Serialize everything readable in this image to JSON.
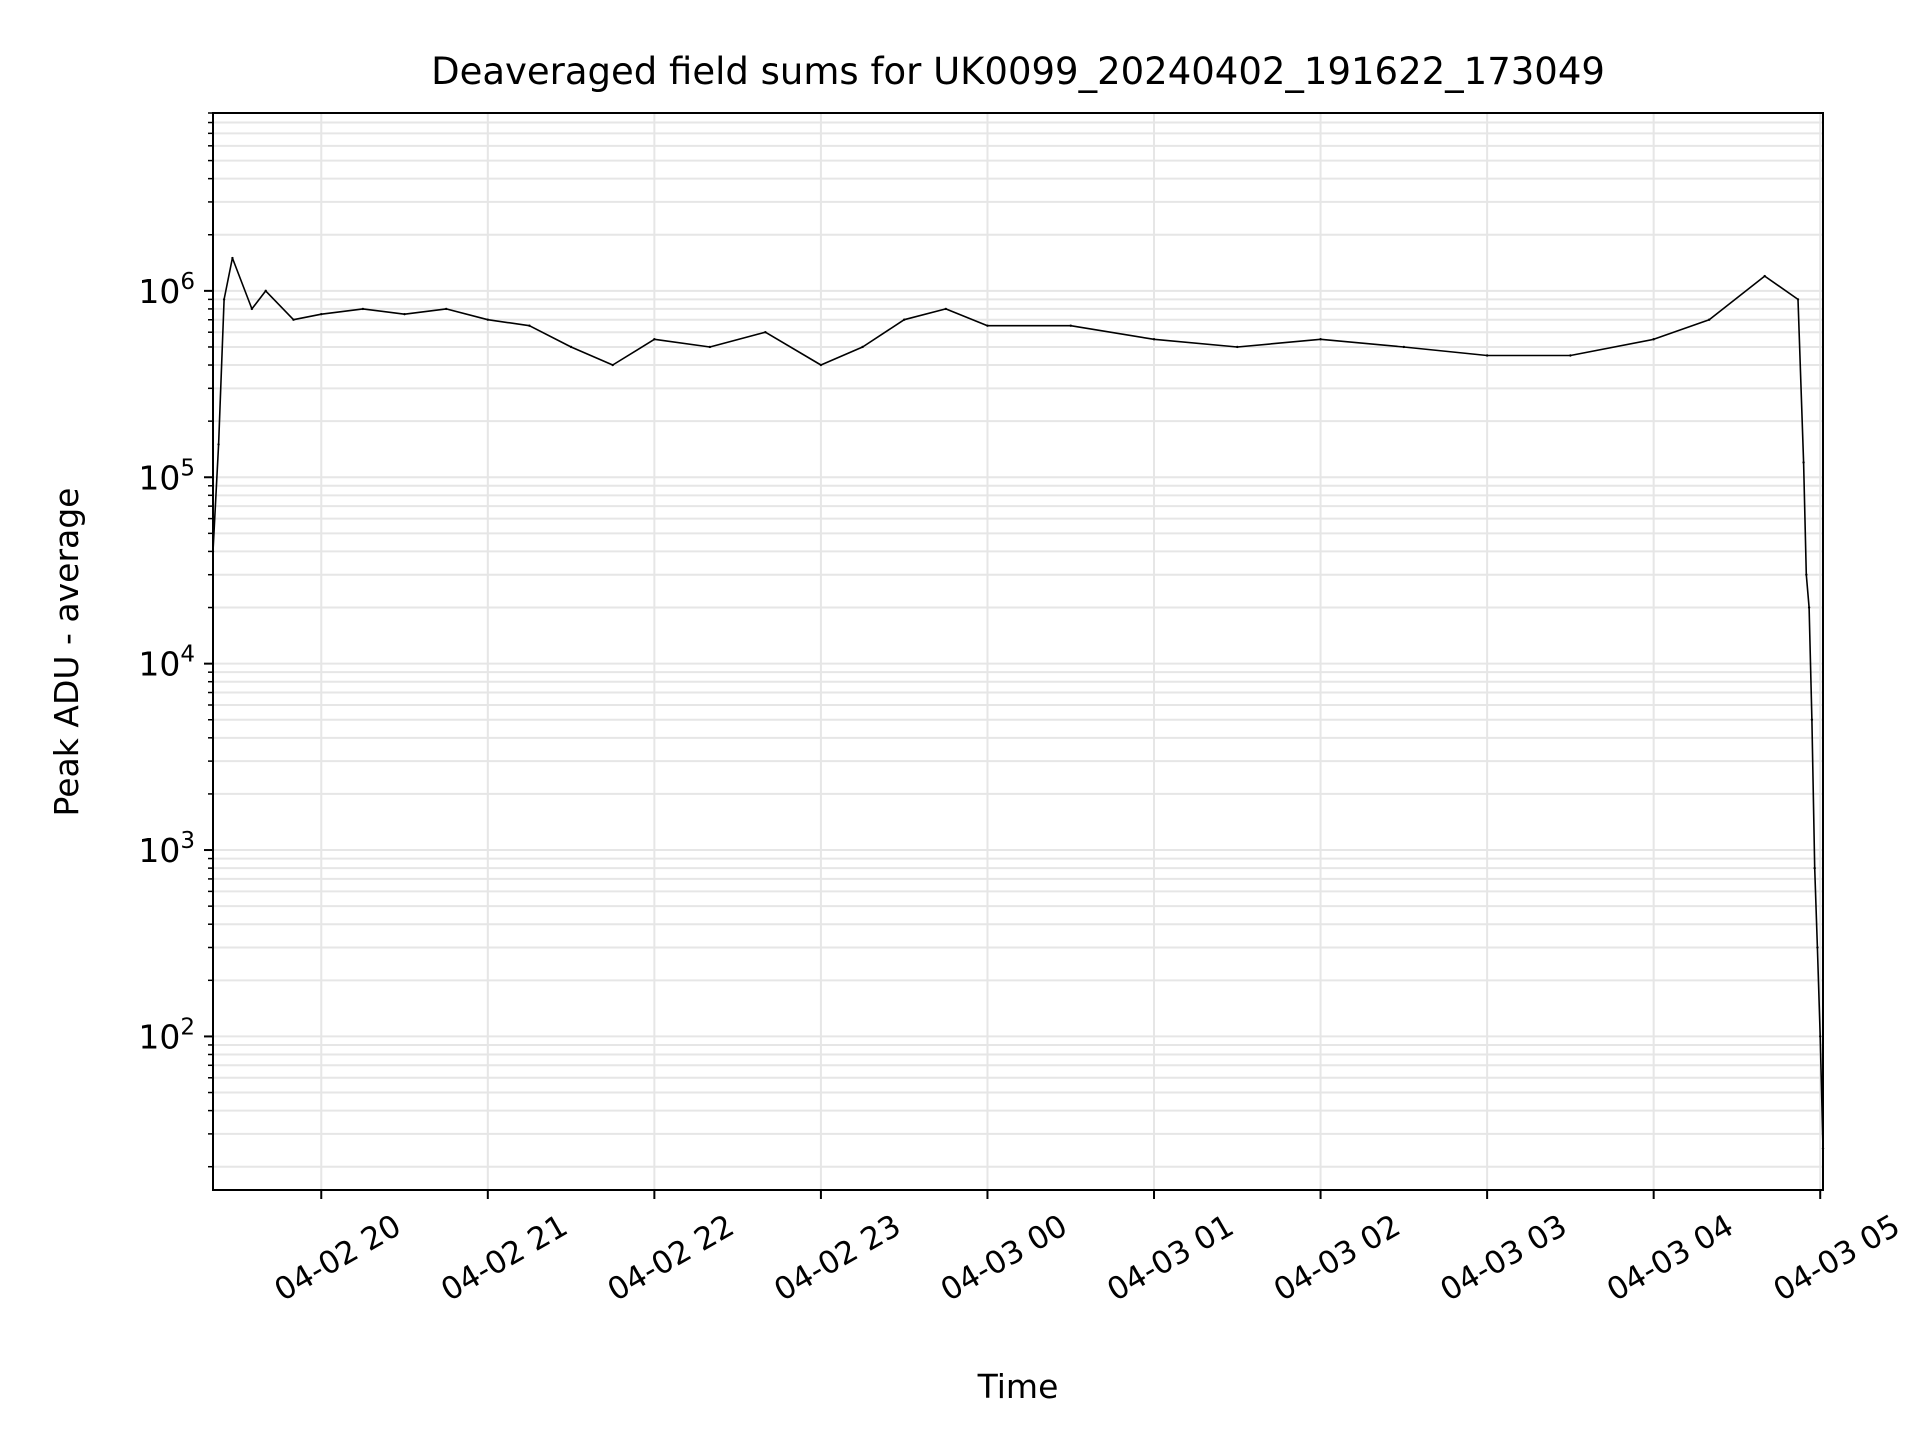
{
  "chart_data": {
    "type": "line",
    "title": "Deaveraged field sums for UK0099_20240402_191622_173049",
    "xlabel": "Time",
    "ylabel": "Peak ADU - average",
    "x_ticks": [
      "04-02 20",
      "04-02 21",
      "04-02 22",
      "04-02 23",
      "04-03 00",
      "04-03 01",
      "04-03 02",
      "04-03 03",
      "04-03 04",
      "04-03 05"
    ],
    "xlim": [
      "04-02 19:21",
      "04-03 05:01"
    ],
    "y_scale": "log",
    "y_ticks": [
      {
        "value": 100,
        "base": "10",
        "exp": "2"
      },
      {
        "value": 1000,
        "base": "10",
        "exp": "3"
      },
      {
        "value": 10000,
        "base": "10",
        "exp": "4"
      },
      {
        "value": 100000,
        "base": "10",
        "exp": "5"
      },
      {
        "value": 1000000,
        "base": "10",
        "exp": "6"
      }
    ],
    "ylim": [
      15,
      9000000
    ],
    "grid": true,
    "line_color": "#000000",
    "grid_color": "#e6e6e6",
    "series": {
      "x": [
        "04-02 19:21",
        "04-02 19:23",
        "04-02 19:25",
        "04-02 19:28",
        "04-02 19:35",
        "04-02 19:40",
        "04-02 19:50",
        "04-02 20:00",
        "04-02 20:15",
        "04-02 20:30",
        "04-02 20:45",
        "04-02 21:00",
        "04-02 21:15",
        "04-02 21:30",
        "04-02 21:45",
        "04-02 22:00",
        "04-02 22:20",
        "04-02 22:40",
        "04-02 23:00",
        "04-02 23:15",
        "04-02 23:30",
        "04-02 23:45",
        "04-03 00:00",
        "04-03 00:30",
        "04-03 01:00",
        "04-03 01:30",
        "04-03 02:00",
        "04-03 02:30",
        "04-03 03:00",
        "04-03 03:30",
        "04-03 04:00",
        "04-03 04:20",
        "04-03 04:40",
        "04-03 04:52",
        "04-03 04:54",
        "04-03 04:55",
        "04-03 04:56",
        "04-03 04:57",
        "04-03 04:58",
        "04-03 04:59",
        "04-03 05:00",
        "04-03 05:01"
      ],
      "y": [
        40000,
        150000,
        900000,
        1500000,
        800000,
        1000000,
        700000,
        750000,
        800000,
        750000,
        800000,
        700000,
        650000,
        500000,
        400000,
        550000,
        500000,
        600000,
        400000,
        500000,
        700000,
        800000,
        650000,
        650000,
        550000,
        500000,
        550000,
        500000,
        450000,
        450000,
        550000,
        700000,
        1200000,
        900000,
        120000,
        30000,
        20000,
        5000,
        800,
        300,
        100,
        25
      ]
    }
  }
}
